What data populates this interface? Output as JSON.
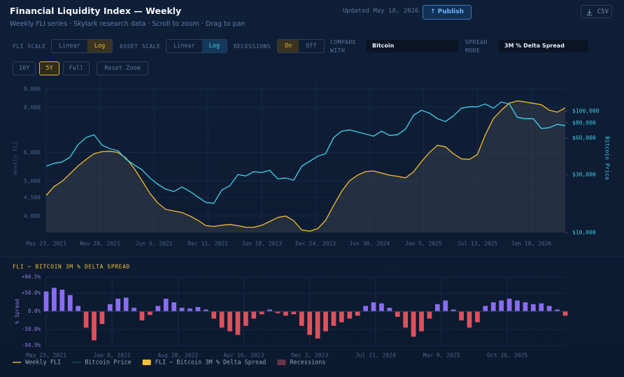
{
  "header": {
    "title": "Financial Liquidity Index — Weekly",
    "subtitle": "Weekly FLI series · Skylark research data · Scroll to zoom · Drag to pan",
    "updated": "Updated May 18, 2026",
    "publish": "↑ Publish",
    "csv": "CSV"
  },
  "controls": {
    "fli_scale": {
      "label": "FLI SCALE",
      "options": [
        "Linear",
        "Log"
      ],
      "selected": 1
    },
    "asset_scale": {
      "label": "ASSET SCALE",
      "options": [
        "Linear",
        "Log"
      ],
      "selected": 1
    },
    "recessions": {
      "label": "RECESSIONS",
      "options": [
        "On",
        "Off"
      ],
      "selected": 0
    },
    "compare": {
      "label": "COMPARE WITH",
      "value": "Bitcoin"
    },
    "spread_mode": {
      "label": "SPREAD MODE",
      "value": "3M % Delta Spread"
    },
    "ranges": {
      "options": [
        "10Y",
        "5Y",
        "Full"
      ],
      "selected": 1
    },
    "reset": "Reset Zoom"
  },
  "chart_data": [
    {
      "type": "line",
      "ylabel": "Weekly FLI",
      "y2label": "Bitcoin Price",
      "ylog": true,
      "y2log": true,
      "grid": true,
      "x": [
        "2021-05-23",
        "2021-06-20",
        "2021-07-18",
        "2021-08-15",
        "2021-09-12",
        "2021-10-10",
        "2021-11-07",
        "2021-12-05",
        "2022-01-02",
        "2022-01-30",
        "2022-02-27",
        "2022-03-27",
        "2022-04-24",
        "2022-05-22",
        "2022-06-19",
        "2022-07-17",
        "2022-08-14",
        "2022-09-11",
        "2022-10-09",
        "2022-11-06",
        "2022-12-04",
        "2023-01-01",
        "2023-01-29",
        "2023-02-26",
        "2023-03-26",
        "2023-04-23",
        "2023-05-21",
        "2023-06-18",
        "2023-07-16",
        "2023-08-13",
        "2023-09-10",
        "2023-10-08",
        "2023-11-05",
        "2023-12-03",
        "2023-12-31",
        "2024-01-28",
        "2024-02-25",
        "2024-03-24",
        "2024-04-21",
        "2024-05-19",
        "2024-06-16",
        "2024-07-14",
        "2024-08-11",
        "2024-09-08",
        "2024-10-06",
        "2024-11-03",
        "2024-12-01",
        "2024-12-29",
        "2025-01-26",
        "2025-02-23",
        "2025-03-23",
        "2025-04-20",
        "2025-05-18",
        "2025-06-15",
        "2025-07-13",
        "2025-08-10",
        "2025-09-07",
        "2025-10-05",
        "2025-11-02",
        "2025-11-30",
        "2025-12-28",
        "2026-01-25",
        "2026-02-22",
        "2026-03-22",
        "2026-04-19",
        "2026-05-17"
      ],
      "xlim": [
        "2021-05-23",
        "2026-05-17"
      ],
      "xticks": [
        {
          "value": "2021-05-23",
          "label": "May 23, 2021"
        },
        {
          "value": "2021-11-28",
          "label": "Nov 28, 2021"
        },
        {
          "value": "2022-06-05",
          "label": "Jun 5, 2022"
        },
        {
          "value": "2022-12-11",
          "label": "Dec 11, 2022"
        },
        {
          "value": "2023-06-18",
          "label": "Jun 18, 2023"
        },
        {
          "value": "2023-12-24",
          "label": "Dec 24, 2023"
        },
        {
          "value": "2024-06-30",
          "label": "Jun 30, 2024"
        },
        {
          "value": "2025-01-05",
          "label": "Jan 5, 2025"
        },
        {
          "value": "2025-07-13",
          "label": "Jul 13, 2025"
        },
        {
          "value": "2026-01-18",
          "label": "Jan 18, 2026"
        }
      ],
      "ylim": [
        3600,
        9300
      ],
      "yticks": [
        {
          "value": 4000,
          "label": "4,000"
        },
        {
          "value": 4500,
          "label": "4,500"
        },
        {
          "value": 5000,
          "label": "5,000"
        },
        {
          "value": 6000,
          "label": "6,000"
        },
        {
          "value": 8000,
          "label": "8,000"
        },
        {
          "value": 9000,
          "label": "9,000"
        }
      ],
      "y2lim": [
        10000,
        168000
      ],
      "y2ticks": [
        {
          "value": 10000,
          "label": "$10,000"
        },
        {
          "value": 30000,
          "label": "$30,000"
        },
        {
          "value": 60000,
          "label": "$60,000"
        },
        {
          "value": 80000,
          "label": "$80,000"
        },
        {
          "value": 100000,
          "label": "$100,000"
        }
      ],
      "series": [
        {
          "name": "Weekly FLI",
          "color": "#e8b32e",
          "area_color": "#3a4250",
          "values": [
            4560,
            4830,
            4990,
            5240,
            5510,
            5740,
            5950,
            6030,
            6050,
            6000,
            5790,
            5430,
            5010,
            4620,
            4340,
            4170,
            4130,
            4090,
            4000,
            3890,
            3760,
            3740,
            3770,
            3790,
            3760,
            3720,
            3720,
            3770,
            3860,
            3960,
            4000,
            3880,
            3660,
            3630,
            3690,
            3890,
            4280,
            4680,
            5010,
            5190,
            5310,
            5330,
            5260,
            5190,
            5150,
            5100,
            5300,
            5660,
            6000,
            6280,
            6220,
            5950,
            5760,
            5740,
            5920,
            6720,
            7450,
            7860,
            8220,
            8340,
            8280,
            8210,
            8140,
            7860,
            7760,
            7970
          ]
        },
        {
          "name": "Bitcoin Price",
          "color": "#3ec6e0",
          "axis": "y2",
          "values": [
            35200,
            37100,
            38100,
            41800,
            53100,
            60600,
            63900,
            52400,
            49000,
            47100,
            40200,
            36100,
            32900,
            28100,
            24900,
            22700,
            21800,
            23700,
            21800,
            19600,
            17700,
            17400,
            22400,
            24300,
            30000,
            29200,
            31700,
            31200,
            32500,
            27700,
            28100,
            27000,
            35200,
            38600,
            42400,
            44700,
            60600,
            68300,
            70100,
            67300,
            64700,
            62200,
            68300,
            63000,
            63900,
            71000,
            92500,
            101500,
            96300,
            86600,
            82100,
            91300,
            105700,
            108500,
            108500,
            114400,
            105700,
            119000,
            114400,
            88900,
            86600,
            86600,
            72000,
            72900,
            77900,
            75900
          ]
        }
      ],
      "recessions": {
        "name": "Recessions",
        "color": "#6a3446"
      }
    },
    {
      "type": "bar",
      "title": "FLI − BITCOIN 3M % DELTA SPREAD",
      "ylabel": "% Spread",
      "grid": true,
      "x": [
        "2021-05-23",
        "2021-06-20",
        "2021-07-18",
        "2021-08-15",
        "2021-09-12",
        "2021-10-10",
        "2021-11-07",
        "2021-12-05",
        "2022-01-02",
        "2022-01-30",
        "2022-02-27",
        "2022-03-27",
        "2022-04-24",
        "2022-05-22",
        "2022-06-19",
        "2022-07-17",
        "2022-08-14",
        "2022-09-11",
        "2022-10-09",
        "2022-11-06",
        "2022-12-04",
        "2023-01-01",
        "2023-01-29",
        "2023-02-26",
        "2023-03-26",
        "2023-04-23",
        "2023-05-21",
        "2023-06-18",
        "2023-07-16",
        "2023-08-13",
        "2023-09-10",
        "2023-10-08",
        "2023-11-05",
        "2023-12-03",
        "2023-12-31",
        "2024-01-28",
        "2024-02-25",
        "2024-03-24",
        "2024-04-21",
        "2024-05-19",
        "2024-06-16",
        "2024-07-14",
        "2024-08-11",
        "2024-09-08",
        "2024-10-06",
        "2024-11-03",
        "2024-12-01",
        "2024-12-29",
        "2025-01-26",
        "2025-02-23",
        "2025-03-23",
        "2025-04-20",
        "2025-05-18",
        "2025-06-15",
        "2025-07-13",
        "2025-08-10",
        "2025-09-07",
        "2025-10-05",
        "2025-11-02",
        "2025-11-30",
        "2025-12-28",
        "2026-01-25",
        "2026-02-22",
        "2026-03-22",
        "2026-04-19",
        "2026-05-17"
      ],
      "xlim": [
        "2021-05-23",
        "2026-05-17"
      ],
      "xticks": [
        {
          "value": "2021-05-23",
          "label": "May 23, 2021"
        },
        {
          "value": "2022-01-09",
          "label": "Jan 9, 2022"
        },
        {
          "value": "2022-08-28",
          "label": "Aug 28, 2022"
        },
        {
          "value": "2023-04-16",
          "label": "Apr 16, 2023"
        },
        {
          "value": "2023-12-03",
          "label": "Dec 3, 2023"
        },
        {
          "value": "2024-07-21",
          "label": "Jul 21, 2024"
        },
        {
          "value": "2025-03-09",
          "label": "Mar 9, 2025"
        },
        {
          "value": "2025-10-26",
          "label": "Oct 26, 2025"
        }
      ],
      "ylim": [
        -94.5,
        94.5
      ],
      "yticks": [
        {
          "value": 94.5,
          "label": "+94.5%"
        },
        {
          "value": 50,
          "label": "+50.0%"
        },
        {
          "value": 0,
          "label": "0.0%"
        },
        {
          "value": -50,
          "label": "-50.0%"
        },
        {
          "value": -94.5,
          "label": "-94.5%"
        }
      ],
      "positive_color": "#8a6cf2",
      "negative_color": "#e0505c",
      "series": [
        {
          "name": "FLI − Bitcoin 3M % Delta Spread",
          "color": "#f2c03a",
          "values": [
            55,
            65,
            60,
            45,
            15,
            -45,
            -80,
            -35,
            20,
            35,
            38,
            10,
            -25,
            -10,
            15,
            35,
            25,
            10,
            8,
            12,
            5,
            -20,
            -45,
            -55,
            -65,
            -40,
            -20,
            -8,
            5,
            -5,
            -12,
            -8,
            -40,
            -65,
            -75,
            -55,
            -40,
            -30,
            -20,
            -12,
            15,
            25,
            22,
            10,
            -15,
            -45,
            -70,
            -55,
            -20,
            20,
            30,
            5,
            -25,
            -45,
            -30,
            15,
            25,
            30,
            35,
            30,
            25,
            20,
            22,
            15,
            5,
            -12
          ]
        }
      ]
    }
  ]
}
